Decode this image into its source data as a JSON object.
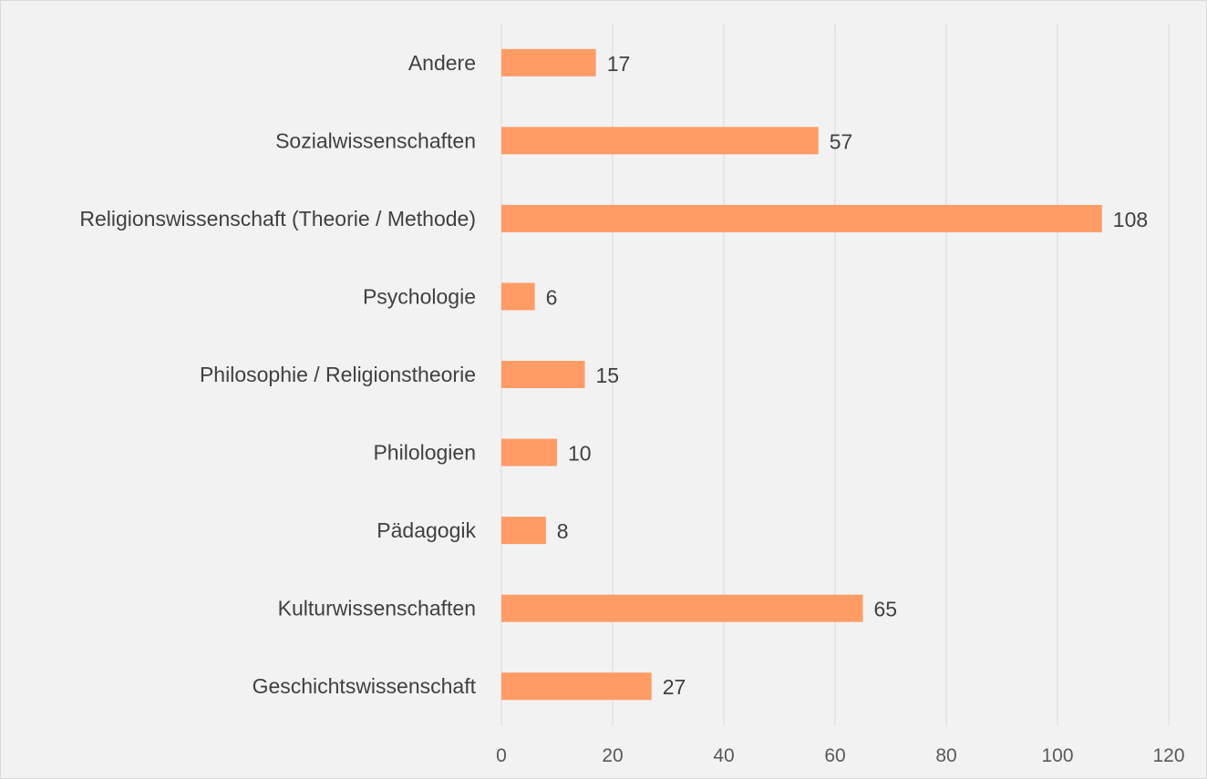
{
  "chart_data": {
    "type": "bar",
    "orientation": "horizontal",
    "categories": [
      "Andere",
      "Sozialwissenschaften",
      "Religionswissenschaft (Theorie / Methode)",
      "Psychologie",
      "Philosophie / Religionstheorie",
      "Philologien",
      "Pädagogik",
      "Kulturwissenschaften",
      "Geschichtswissenschaft"
    ],
    "values": [
      17,
      57,
      108,
      6,
      15,
      10,
      8,
      65,
      27
    ],
    "xlim": [
      0,
      120
    ],
    "xticks": [
      0,
      20,
      40,
      60,
      80,
      100,
      120
    ],
    "grid": "vertical",
    "legend": "none",
    "title": "",
    "xlabel": "",
    "ylabel": ""
  },
  "colors": {
    "bar": "#ff9c66",
    "gridline": "#d9d9d9",
    "label_text": "#404040",
    "tick_text": "#595959",
    "background": "#f2f2f2"
  }
}
